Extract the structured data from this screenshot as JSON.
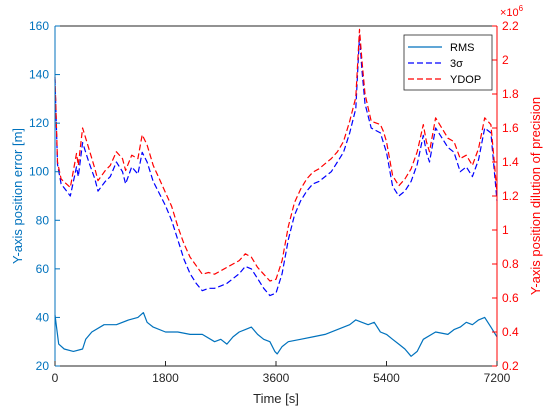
{
  "chart_data": {
    "type": "line",
    "xlabel": "Time [s]",
    "ylabel_left": "Y-axis position error [m]",
    "ylabel_right": "Y-axis position dilution of precision",
    "right_axis_exponent": "×10",
    "right_axis_exponent_power": "6",
    "xlim": [
      0,
      7200
    ],
    "ylim_left": [
      20,
      160
    ],
    "ylim_right": [
      200000,
      2200000
    ],
    "x_ticks": [
      "0",
      "1800",
      "3600",
      "5400",
      "7200"
    ],
    "x_tick_values": [
      0,
      1800,
      3600,
      5400,
      7200
    ],
    "y_left_ticks": [
      "20",
      "40",
      "60",
      "80",
      "100",
      "120",
      "140",
      "160"
    ],
    "y_left_tick_values": [
      20,
      40,
      60,
      80,
      100,
      120,
      140,
      160
    ],
    "y_right_ticks": [
      "0.2",
      "0.4",
      "0.6",
      "0.8",
      "1",
      "1.2",
      "1.4",
      "1.6",
      "1.8",
      "2",
      "2.2"
    ],
    "y_right_tick_values": [
      200000,
      400000,
      600000,
      800000,
      1000000,
      1200000,
      1400000,
      1600000,
      1800000,
      2000000,
      2200000
    ],
    "grid": false,
    "legend_position": "top-right",
    "colors": {
      "left_axis": "#0072BD",
      "right_axis": "#FF0000",
      "rms": "#0072BD",
      "three_sigma": "#0000FF",
      "ydop": "#FF0000"
    },
    "series": [
      {
        "name": "RMS",
        "axis": "left",
        "style": "solid",
        "x": [
          0,
          60,
          150,
          300,
          450,
          500,
          600,
          800,
          1000,
          1200,
          1350,
          1440,
          1500,
          1600,
          1800,
          2000,
          2200,
          2400,
          2600,
          2700,
          2800,
          2900,
          3000,
          3100,
          3200,
          3300,
          3400,
          3500,
          3580,
          3620,
          3700,
          3800,
          4000,
          4200,
          4400,
          4600,
          4800,
          4900,
          5000,
          5100,
          5200,
          5300,
          5400,
          5500,
          5600,
          5700,
          5800,
          5900,
          6000,
          6200,
          6400,
          6500,
          6600,
          6700,
          6800,
          6900,
          7000,
          7100,
          7200
        ],
        "y": [
          41,
          29,
          27,
          26,
          27,
          31,
          34,
          37,
          37,
          39,
          40,
          42,
          38,
          36,
          34,
          34,
          33,
          33,
          30,
          31,
          29,
          32,
          34,
          35,
          36,
          33,
          31,
          30,
          26,
          25,
          28,
          30,
          31,
          32,
          33,
          35,
          37,
          39,
          38,
          37,
          38,
          34,
          33,
          31,
          29,
          27,
          24,
          26,
          31,
          34,
          33,
          35,
          36,
          38,
          37,
          39,
          40,
          36,
          32
        ]
      },
      {
        "name": "3σ",
        "axis": "left",
        "style": "dashed",
        "x": [
          0,
          40,
          100,
          250,
          350,
          380,
          450,
          550,
          650,
          700,
          820,
          900,
          1000,
          1100,
          1150,
          1250,
          1350,
          1420,
          1500,
          1600,
          1700,
          1800,
          1900,
          2000,
          2100,
          2200,
          2300,
          2400,
          2500,
          2600,
          2700,
          2800,
          2900,
          3000,
          3100,
          3200,
          3300,
          3400,
          3500,
          3600,
          3700,
          3800,
          3900,
          4000,
          4100,
          4200,
          4300,
          4400,
          4500,
          4600,
          4700,
          4800,
          4900,
          4960,
          5000,
          5050,
          5150,
          5300,
          5350,
          5400,
          5500,
          5600,
          5700,
          5800,
          5900,
          6000,
          6050,
          6100,
          6200,
          6300,
          6400,
          6500,
          6600,
          6700,
          6800,
          6900,
          7000,
          7100,
          7200
        ],
        "y": [
          138,
          103,
          95,
          90,
          102,
          98,
          112,
          104,
          97,
          92,
          96,
          98,
          104,
          100,
          95,
          102,
          99,
          108,
          104,
          96,
          91,
          86,
          80,
          72,
          64,
          58,
          54,
          51,
          52,
          52,
          53,
          54,
          56,
          58,
          61,
          60,
          56,
          52,
          49,
          50,
          58,
          72,
          82,
          88,
          92,
          95,
          96,
          98,
          100,
          104,
          108,
          116,
          126,
          156,
          142,
          128,
          118,
          116,
          112,
          108,
          94,
          90,
          92,
          96,
          103,
          115,
          108,
          104,
          118,
          114,
          110,
          108,
          100,
          102,
          98,
          105,
          118,
          116,
          88
        ]
      },
      {
        "name": "YDOP",
        "axis": "right",
        "style": "dashed",
        "x": [
          0,
          40,
          100,
          250,
          350,
          380,
          450,
          550,
          650,
          700,
          820,
          900,
          1000,
          1100,
          1150,
          1250,
          1350,
          1420,
          1500,
          1600,
          1700,
          1800,
          1900,
          2000,
          2100,
          2200,
          2300,
          2400,
          2500,
          2600,
          2700,
          2800,
          2900,
          3000,
          3100,
          3200,
          3300,
          3400,
          3500,
          3600,
          3700,
          3800,
          3900,
          4000,
          4100,
          4200,
          4300,
          4400,
          4500,
          4600,
          4700,
          4800,
          4900,
          4960,
          5000,
          5050,
          5150,
          5300,
          5350,
          5400,
          5500,
          5600,
          5700,
          5800,
          5900,
          6000,
          6050,
          6100,
          6200,
          6300,
          6400,
          6500,
          6600,
          6700,
          6800,
          6900,
          7000,
          7100,
          7200
        ],
        "y": [
          1900000,
          1400000,
          1300000,
          1250000,
          1450000,
          1380000,
          1600000,
          1480000,
          1360000,
          1290000,
          1350000,
          1380000,
          1460000,
          1420000,
          1350000,
          1440000,
          1420000,
          1560000,
          1500000,
          1380000,
          1300000,
          1220000,
          1140000,
          1020000,
          920000,
          840000,
          790000,
          740000,
          750000,
          740000,
          760000,
          780000,
          800000,
          820000,
          860000,
          840000,
          780000,
          740000,
          700000,
          710000,
          820000,
          1020000,
          1160000,
          1240000,
          1300000,
          1340000,
          1360000,
          1390000,
          1420000,
          1460000,
          1520000,
          1640000,
          1780000,
          2180000,
          2000000,
          1800000,
          1640000,
          1620000,
          1580000,
          1520000,
          1320000,
          1260000,
          1300000,
          1360000,
          1460000,
          1620000,
          1520000,
          1460000,
          1660000,
          1600000,
          1540000,
          1520000,
          1420000,
          1440000,
          1380000,
          1480000,
          1660000,
          1620000,
          1220000
        ]
      }
    ]
  }
}
